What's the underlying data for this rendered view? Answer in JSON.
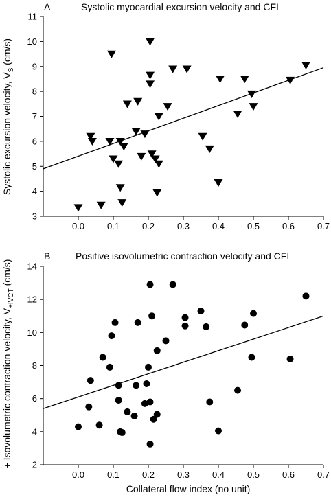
{
  "chart_data": [
    {
      "type": "scatter",
      "panel_label": "A",
      "title": "Systolic myocardial excursion velocity and CFI",
      "ylabel_main": "Systolic excursion velocity, V",
      "ylabel_sub": "S",
      "ylabel_unit": " (cm/s)",
      "xlim": [
        -0.1,
        0.7
      ],
      "ylim": [
        3,
        11
      ],
      "x_ticks": [
        "0.0",
        "0.1",
        "0.2",
        "0.3",
        "0.4",
        "0.5",
        "0.6",
        "0.7"
      ],
      "y_ticks": [
        "3",
        "4",
        "5",
        "6",
        "7",
        "8",
        "9",
        "10",
        "11"
      ],
      "marker": "triangle-down",
      "points": [
        {
          "x": 0.0,
          "y": 3.35
        },
        {
          "x": 0.035,
          "y": 6.2
        },
        {
          "x": 0.04,
          "y": 6.0
        },
        {
          "x": 0.065,
          "y": 3.45
        },
        {
          "x": 0.09,
          "y": 6.0
        },
        {
          "x": 0.095,
          "y": 9.5
        },
        {
          "x": 0.1,
          "y": 5.3
        },
        {
          "x": 0.115,
          "y": 5.1
        },
        {
          "x": 0.12,
          "y": 6.0
        },
        {
          "x": 0.12,
          "y": 4.15
        },
        {
          "x": 0.125,
          "y": 3.55
        },
        {
          "x": 0.13,
          "y": 5.8
        },
        {
          "x": 0.14,
          "y": 7.5
        },
        {
          "x": 0.165,
          "y": 6.4
        },
        {
          "x": 0.17,
          "y": 7.6
        },
        {
          "x": 0.18,
          "y": 5.4
        },
        {
          "x": 0.19,
          "y": 6.3
        },
        {
          "x": 0.205,
          "y": 10.0
        },
        {
          "x": 0.205,
          "y": 8.65
        },
        {
          "x": 0.205,
          "y": 8.3
        },
        {
          "x": 0.21,
          "y": 5.5
        },
        {
          "x": 0.22,
          "y": 5.3
        },
        {
          "x": 0.225,
          "y": 3.95
        },
        {
          "x": 0.23,
          "y": 5.1
        },
        {
          "x": 0.23,
          "y": 7.0
        },
        {
          "x": 0.255,
          "y": 7.4
        },
        {
          "x": 0.27,
          "y": 8.9
        },
        {
          "x": 0.31,
          "y": 8.9
        },
        {
          "x": 0.355,
          "y": 6.2
        },
        {
          "x": 0.375,
          "y": 5.7
        },
        {
          "x": 0.4,
          "y": 4.35
        },
        {
          "x": 0.405,
          "y": 8.5
        },
        {
          "x": 0.455,
          "y": 7.1
        },
        {
          "x": 0.475,
          "y": 8.5
        },
        {
          "x": 0.495,
          "y": 7.9
        },
        {
          "x": 0.5,
          "y": 7.4
        },
        {
          "x": 0.605,
          "y": 8.45
        },
        {
          "x": 0.65,
          "y": 9.05
        }
      ],
      "regression": {
        "x": [
          -0.1,
          0.7
        ],
        "y": [
          4.9,
          8.95
        ]
      },
      "grid": false
    },
    {
      "type": "scatter",
      "panel_label": "B",
      "title": "Positive isovolumetric contraction velocity and CFI",
      "ylabel_main": "+ Isovolumetric contraction velocity, V",
      "ylabel_sub": "+IVCT",
      "ylabel_unit": " (cm/s)",
      "xlabel": "Collateral flow index (no unit)",
      "xlim": [
        -0.1,
        0.7
      ],
      "ylim": [
        2,
        14
      ],
      "x_ticks": [
        "0.0",
        "0.1",
        "0.2",
        "0.3",
        "0.4",
        "0.5",
        "0.6",
        "0.7"
      ],
      "y_ticks": [
        "2",
        "4",
        "6",
        "8",
        "10",
        "12",
        "14"
      ],
      "marker": "circle",
      "points": [
        {
          "x": 0.0,
          "y": 4.3
        },
        {
          "x": 0.03,
          "y": 5.5
        },
        {
          "x": 0.035,
          "y": 7.1
        },
        {
          "x": 0.06,
          "y": 4.4
        },
        {
          "x": 0.07,
          "y": 8.5
        },
        {
          "x": 0.09,
          "y": 7.9
        },
        {
          "x": 0.095,
          "y": 9.8
        },
        {
          "x": 0.105,
          "y": 10.6
        },
        {
          "x": 0.115,
          "y": 6.8
        },
        {
          "x": 0.115,
          "y": 5.9
        },
        {
          "x": 0.12,
          "y": 4.0
        },
        {
          "x": 0.125,
          "y": 3.95
        },
        {
          "x": 0.14,
          "y": 5.2
        },
        {
          "x": 0.16,
          "y": 4.95
        },
        {
          "x": 0.165,
          "y": 6.8
        },
        {
          "x": 0.17,
          "y": 10.6
        },
        {
          "x": 0.19,
          "y": 5.7
        },
        {
          "x": 0.195,
          "y": 6.9
        },
        {
          "x": 0.2,
          "y": 7.9
        },
        {
          "x": 0.205,
          "y": 12.9
        },
        {
          "x": 0.205,
          "y": 5.8
        },
        {
          "x": 0.205,
          "y": 3.25
        },
        {
          "x": 0.21,
          "y": 11.0
        },
        {
          "x": 0.215,
          "y": 4.75
        },
        {
          "x": 0.225,
          "y": 8.9
        },
        {
          "x": 0.225,
          "y": 5.05
        },
        {
          "x": 0.25,
          "y": 9.5
        },
        {
          "x": 0.27,
          "y": 12.9
        },
        {
          "x": 0.305,
          "y": 10.9
        },
        {
          "x": 0.305,
          "y": 10.4
        },
        {
          "x": 0.35,
          "y": 11.3
        },
        {
          "x": 0.365,
          "y": 10.35
        },
        {
          "x": 0.375,
          "y": 5.8
        },
        {
          "x": 0.4,
          "y": 4.05
        },
        {
          "x": 0.455,
          "y": 6.5
        },
        {
          "x": 0.475,
          "y": 10.45
        },
        {
          "x": 0.495,
          "y": 8.5
        },
        {
          "x": 0.5,
          "y": 11.15
        },
        {
          "x": 0.605,
          "y": 8.4
        },
        {
          "x": 0.65,
          "y": 12.2
        }
      ],
      "regression": {
        "x": [
          -0.1,
          0.7
        ],
        "y": [
          5.4,
          11.0
        ]
      },
      "grid": false
    }
  ]
}
